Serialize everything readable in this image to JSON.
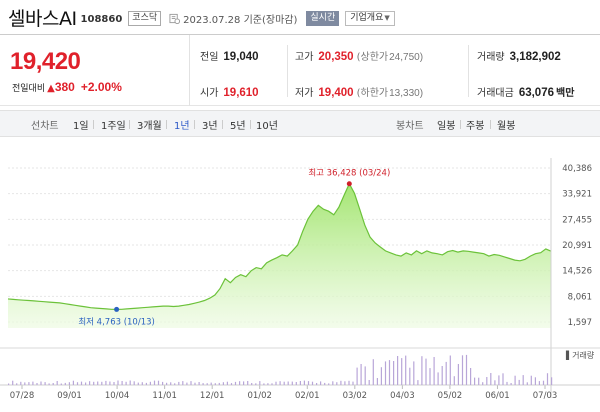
{
  "header": {
    "stock_name": "셀바스AI",
    "stock_code": "108860",
    "market": "코스닥",
    "date": "2023.07.28 기준(장마감)",
    "realtime_label": "실시간",
    "company_info_label": "기업개요"
  },
  "price": {
    "current": "19,420",
    "change_label": "전일대비",
    "change_arrow": "▲",
    "change_value": "380",
    "change_percent": "+2.00%"
  },
  "stats": {
    "prev_close_label": "전일",
    "prev_close": "19,040",
    "open_label": "시가",
    "open": "19,610",
    "high_label": "고가",
    "high": "20,350",
    "upper_limit_label": "(상한가",
    "upper_limit": "24,750)",
    "low_label": "저가",
    "low": "19,400",
    "lower_limit_label": "(하한가",
    "lower_limit": "13,330)",
    "volume_label": "거래량",
    "volume": "3,182,902",
    "value_label": "거래대금",
    "value": "63,076",
    "value_unit": "백만"
  },
  "tabs": {
    "line_chart": "선차트",
    "periods": [
      "1일",
      "1주일",
      "3개월",
      "1년",
      "3년",
      "5년",
      "10년"
    ],
    "active_period": "1년",
    "candle_chart": "봉차트",
    "candle_periods": [
      "일봉",
      "주봉",
      "월봉"
    ]
  },
  "chart_data": {
    "type": "area",
    "x_tick_labels": [
      "07/28",
      "09/01",
      "10/04",
      "11/01",
      "12/01",
      "01/02",
      "02/01",
      "03/02",
      "04/03",
      "05/02",
      "06/01",
      "07/03"
    ],
    "y_tick_labels": [
      "40,386",
      "33,921",
      "27,455",
      "20,991",
      "14,526",
      "8,061",
      "1,597"
    ],
    "ylim": [
      1597,
      40386
    ],
    "max_annotation": "최고 36,428 (03/24)",
    "min_annotation": "최저 4,763 (10/13)",
    "volume_label": "거래량",
    "series": [
      {
        "values": [
          7400,
          7300,
          7200,
          7100,
          7000,
          6900,
          6800,
          6700,
          6600,
          6500,
          6400,
          6200,
          6000,
          5800,
          5600,
          5400,
          5200,
          5100,
          5000,
          4900,
          4800,
          4763,
          4800,
          4900,
          5000,
          5100,
          5200,
          5300,
          5400,
          5500,
          5600,
          5600,
          5500,
          5600,
          5800,
          6000,
          6300,
          6600,
          7000,
          7600,
          8400,
          10000,
          12500,
          11500,
          12800,
          13500,
          13000,
          14500,
          15300,
          15000,
          16500,
          17200,
          17800,
          18500,
          18200,
          19500,
          21000,
          24500,
          27500,
          29500,
          31000,
          30000,
          29500,
          28600,
          30600,
          33500,
          36428,
          34000,
          30000,
          26000,
          23000,
          21500,
          20500,
          19500,
          19000,
          18500,
          18200,
          19000,
          18500,
          19500,
          18800,
          19500,
          19000,
          18800,
          18500,
          19300,
          19600,
          19200,
          19500,
          19400,
          19200,
          19000,
          18800,
          18200,
          18600,
          18400,
          18000,
          17600,
          17200,
          17000,
          17400,
          18200,
          18800,
          19040,
          20000,
          19420
        ]
      }
    ]
  }
}
